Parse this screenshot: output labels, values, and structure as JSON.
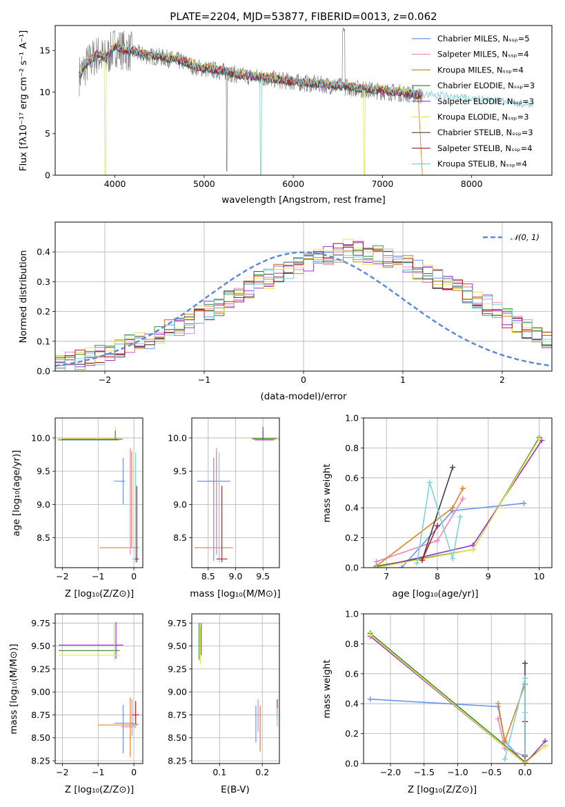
{
  "colors": {
    "series": [
      "#6495ed",
      "#ee82c0",
      "#e08020",
      "#3c8c3c",
      "#9932cc",
      "#e8e84a",
      "#404040",
      "#b22222",
      "#80d0d8"
    ],
    "normal": "#5b8bd8",
    "observed": "#808080"
  },
  "chart_data": [
    {
      "id": "spectrum",
      "type": "line",
      "title": "PLATE=2204, MJD=53877, FIBERID=0013, z=0.062",
      "xlabel": "wavelength [Angstrom, rest frame]",
      "ylabel": "Flux [fλ10⁻¹⁷ erg cm⁻² s⁻¹ A⁻¹]",
      "xlim": [
        3330,
        8900
      ],
      "ylim": [
        0,
        18
      ],
      "xticks": [
        "4000",
        "5000",
        "6000",
        "7000",
        "8000"
      ],
      "yticks": [
        "0",
        "5",
        "10",
        "15"
      ],
      "legend_position": "top-right",
      "series": [
        {
          "name": "Chabrier MILES, Nₛₛₚ=5"
        },
        {
          "name": "Salpeter MILES, Nₛₛₚ=4"
        },
        {
          "name": "Kroupa MILES, Nₛₛₚ=4"
        },
        {
          "name": "Chabrier ELODIE, Nₛₛₚ=3"
        },
        {
          "name": "Salpeter ELODIE, Nₛₛₚ=3"
        },
        {
          "name": "Kroupa ELODIE, Nₛₛₚ=3"
        },
        {
          "name": "Chabrier STELIB, Nₛₛₚ=3"
        },
        {
          "name": "Salpeter STELIB, Nₛₛₚ=4"
        },
        {
          "name": "Kroupa STELIB, Nₛₛₚ=4"
        }
      ],
      "continuum": {
        "x": [
          3600,
          3700,
          3800,
          3900,
          4000,
          4100,
          4200,
          4300,
          4400,
          4500,
          4600,
          4700,
          4800,
          4900,
          5000,
          5200,
          5400,
          5600,
          5800,
          6000,
          6200,
          6400,
          6600,
          6800,
          7000,
          7200,
          7400,
          7600,
          7800,
          8000,
          8200,
          8400,
          8600,
          8700
        ],
        "y": [
          12.0,
          13.5,
          14.5,
          14.0,
          15.5,
          15.0,
          14.8,
          14.5,
          14.3,
          14.2,
          14.0,
          13.8,
          13.5,
          13.0,
          12.8,
          12.5,
          12.0,
          11.8,
          11.5,
          11.2,
          11.0,
          10.8,
          10.6,
          10.3,
          10.1,
          9.9,
          9.6,
          9.4,
          9.2,
          9.0,
          8.8,
          8.6,
          8.4,
          8.3
        ]
      }
    },
    {
      "id": "residuals",
      "type": "line",
      "xlabel": "(data-model)/error",
      "ylabel": "Normed distribution",
      "xlim": [
        -2.5,
        2.5
      ],
      "ylim": [
        0,
        0.5
      ],
      "xticks": [
        "−2",
        "−1",
        "0",
        "1",
        "2"
      ],
      "yticks": [
        "0.0",
        "0.1",
        "0.2",
        "0.3",
        "0.4"
      ],
      "legend": "𝒩(0, 1)",
      "legend_position": "top-right",
      "bin_edges_start": -2.5,
      "bin_width": 0.1,
      "base_counts": [
        0.025,
        0.03,
        0.04,
        0.05,
        0.055,
        0.065,
        0.075,
        0.09,
        0.1,
        0.11,
        0.12,
        0.14,
        0.15,
        0.16,
        0.19,
        0.2,
        0.22,
        0.24,
        0.26,
        0.28,
        0.3,
        0.31,
        0.33,
        0.34,
        0.35,
        0.37,
        0.38,
        0.39,
        0.4,
        0.41,
        0.4,
        0.39,
        0.39,
        0.38,
        0.37,
        0.36,
        0.34,
        0.33,
        0.31,
        0.3,
        0.28,
        0.26,
        0.24,
        0.22,
        0.2,
        0.18,
        0.16,
        0.14,
        0.12,
        0.11
      ]
    },
    {
      "id": "age-vs-Z",
      "type": "scatter",
      "xlabel": "Z [log₁₀(Z/Z⊙)]",
      "ylabel": "age  [log₁₀(age/yr)]",
      "xlim": [
        -2.2,
        0.25
      ],
      "ylim": [
        8.05,
        10.3
      ],
      "xticks": [
        "−2",
        "−1",
        "0"
      ],
      "yticks": [
        "8.5",
        "9.0",
        "9.5",
        "10.0"
      ],
      "errorbars": [
        {
          "s": 4,
          "x": -0.52,
          "y": 9.98,
          "xerr": [
            1.5,
            0.2
          ],
          "yerr": [
            0.0,
            0.18
          ]
        },
        {
          "s": 5,
          "x": -0.52,
          "y": 9.99,
          "xerr": [
            1.6,
            0.15
          ],
          "yerr": [
            0.0,
            0.18
          ]
        },
        {
          "s": 3,
          "x": -0.52,
          "y": 9.97,
          "xerr": [
            1.6,
            0.1
          ],
          "yerr": [
            0.0,
            0.14
          ]
        },
        {
          "s": 0,
          "x": -0.3,
          "y": 9.35,
          "xerr": [
            0.25,
            0.05
          ],
          "yerr": [
            0.35,
            0.35
          ]
        },
        {
          "s": 2,
          "x": -0.06,
          "y": 8.35,
          "xerr": [
            0.9,
            0.2
          ],
          "yerr": [
            0.0,
            1.45
          ]
        },
        {
          "s": 1,
          "x": -0.1,
          "y": 8.35,
          "xerr": [
            0.1,
            0.1
          ],
          "yerr": [
            0.1,
            1.5
          ]
        },
        {
          "s": 8,
          "x": 0.05,
          "y": 8.18,
          "xerr": [
            0.1,
            0.1
          ],
          "yerr": [
            0.05,
            1.6
          ]
        },
        {
          "s": 7,
          "x": 0.08,
          "y": 8.18,
          "xerr": [
            0.05,
            0.05
          ],
          "yerr": [
            0.05,
            1.1
          ]
        }
      ]
    },
    {
      "id": "age-vs-mass",
      "type": "scatter",
      "xlabel": "mass [log₁₀(M/M⊙)]",
      "ylabel": "",
      "xlim": [
        8.2,
        9.8
      ],
      "ylim": [
        8.05,
        10.3
      ],
      "xticks": [
        "8.5",
        "9.0",
        "9.5"
      ],
      "yticks": [
        "8.5",
        "9.0",
        "9.5",
        "10.0"
      ],
      "errorbars": [
        {
          "s": 5,
          "x": 9.5,
          "y": 9.98,
          "xerr": [
            0.2,
            0.3
          ],
          "yerr": [
            0.0,
            0.2
          ]
        },
        {
          "s": 3,
          "x": 9.5,
          "y": 9.99,
          "xerr": [
            0.2,
            0.25
          ],
          "yerr": [
            0.0,
            0.18
          ]
        },
        {
          "s": 4,
          "x": 9.5,
          "y": 9.97,
          "xerr": [
            0.15,
            0.2
          ],
          "yerr": [
            0.0,
            0.15
          ]
        },
        {
          "s": 0,
          "x": 8.6,
          "y": 9.35,
          "xerr": [
            0.3,
            0.3
          ],
          "yerr": [
            1.2,
            0.35
          ]
        },
        {
          "s": 2,
          "x": 8.65,
          "y": 8.35,
          "xerr": [
            0.4,
            0.3
          ],
          "yerr": [
            0.1,
            1.45
          ]
        },
        {
          "s": 1,
          "x": 8.65,
          "y": 8.35,
          "xerr": [
            0.05,
            0.05
          ],
          "yerr": [
            0.1,
            1.5
          ]
        },
        {
          "s": 8,
          "x": 8.7,
          "y": 8.18,
          "xerr": [
            0.05,
            0.05
          ],
          "yerr": [
            0.05,
            1.6
          ]
        },
        {
          "s": 7,
          "x": 8.75,
          "y": 8.18,
          "xerr": [
            0.1,
            0.1
          ],
          "yerr": [
            0.05,
            1.1
          ]
        }
      ]
    },
    {
      "id": "mass-weight-vs-age",
      "type": "line",
      "xlabel": "age  [log₁₀(age/yr)]",
      "ylabel": "mass weight",
      "xlim": [
        6.55,
        10.25
      ],
      "ylim": [
        0,
        1
      ],
      "xticks": [
        "7",
        "8",
        "9",
        "10"
      ],
      "yticks": [
        "0.0",
        "0.2",
        "0.4",
        "0.6",
        "0.8",
        "1.0"
      ],
      "series": [
        {
          "s": 0,
          "x": [
            7.3,
            8.3,
            9.7
          ],
          "y": [
            0.0,
            0.38,
            0.43
          ]
        },
        {
          "s": 1,
          "x": [
            6.8,
            8.0,
            8.5
          ],
          "y": [
            0.04,
            0.18,
            0.46
          ]
        },
        {
          "s": 2,
          "x": [
            6.8,
            8.3,
            8.5
          ],
          "y": [
            0.01,
            0.4,
            0.53
          ]
        },
        {
          "s": 3,
          "x": [
            6.8,
            8.7,
            10.0
          ],
          "y": [
            0.01,
            0.12,
            0.87
          ]
        },
        {
          "s": 4,
          "x": [
            6.8,
            8.7,
            10.05
          ],
          "y": [
            0.0,
            0.15,
            0.85
          ]
        },
        {
          "s": 5,
          "x": [
            6.8,
            8.7,
            10.0
          ],
          "y": [
            0.0,
            0.12,
            0.86
          ]
        },
        {
          "s": 6,
          "x": [
            7.7,
            8.3
          ],
          "y": [
            0.05,
            0.67
          ]
        },
        {
          "s": 7,
          "x": [
            7.7,
            8.0
          ],
          "y": [
            0.05,
            0.28
          ]
        },
        {
          "s": 8,
          "x": [
            7.6,
            7.85,
            8.3,
            8.45
          ],
          "y": [
            0.03,
            0.57,
            0.06,
            0.34
          ]
        }
      ]
    },
    {
      "id": "mass-vs-Z",
      "type": "scatter",
      "xlabel": "Z [log₁₀(Z/Z⊙)]",
      "ylabel": "mass [log₁₀(M/M⊙)]",
      "xlim": [
        -2.2,
        0.25
      ],
      "ylim": [
        8.22,
        9.85
      ],
      "xticks": [
        "−2",
        "−1",
        "0"
      ],
      "yticks": [
        "8.25",
        "8.50",
        "8.75",
        "9.00",
        "9.25",
        "9.50",
        "9.75"
      ],
      "errorbars": [
        {
          "s": 4,
          "x": -0.5,
          "y": 9.51,
          "xerr": [
            1.6,
            0.2
          ],
          "yerr": [
            0.15,
            0.25
          ]
        },
        {
          "s": 3,
          "x": -0.55,
          "y": 9.45,
          "xerr": [
            1.55,
            0.15
          ],
          "yerr": [
            0.1,
            0.3
          ]
        },
        {
          "s": 5,
          "x": -0.55,
          "y": 9.4,
          "xerr": [
            1.55,
            0.15
          ],
          "yerr": [
            0.05,
            0.35
          ]
        },
        {
          "s": 0,
          "x": -0.3,
          "y": 8.66,
          "xerr": [
            0.25,
            0.3
          ],
          "yerr": [
            0.33,
            0.2
          ]
        },
        {
          "s": 2,
          "x": -0.1,
          "y": 8.64,
          "xerr": [
            0.9,
            0.2
          ],
          "yerr": [
            0.35,
            0.3
          ]
        },
        {
          "s": 1,
          "x": -0.05,
          "y": 8.62,
          "xerr": [
            0.3,
            0.1
          ],
          "yerr": [
            0.1,
            0.3
          ]
        },
        {
          "s": 8,
          "x": 0.05,
          "y": 8.65,
          "xerr": [
            0.1,
            0.1
          ],
          "yerr": [
            0.05,
            0.1
          ]
        },
        {
          "s": 7,
          "x": 0.05,
          "y": 8.75,
          "xerr": [
            0.1,
            0.1
          ],
          "yerr": [
            0.1,
            0.15
          ]
        }
      ]
    },
    {
      "id": "mass-vs-ebv",
      "type": "scatter",
      "xlabel": "E(B-V)",
      "ylabel": "",
      "xlim": [
        0.035,
        0.24
      ],
      "ylim": [
        8.22,
        9.85
      ],
      "xticks": [
        "0.1",
        "0.2"
      ],
      "yticks": [
        "8.25",
        "8.50",
        "8.75",
        "9.00",
        "9.25",
        "9.50",
        "9.75"
      ],
      "errorbars": [
        {
          "s": 3,
          "x": 0.052,
          "y": 9.55,
          "xerr": [
            0.0,
            0.0
          ],
          "yerr": [
            0.2,
            0.2
          ]
        },
        {
          "s": 5,
          "x": 0.055,
          "y": 9.5,
          "xerr": [
            0.0,
            0.0
          ],
          "yerr": [
            0.2,
            0.22
          ]
        },
        {
          "s": 4,
          "x": 0.057,
          "y": 9.55,
          "xerr": [
            0.0,
            0.0
          ],
          "yerr": [
            0.15,
            0.2
          ]
        },
        {
          "s": 0,
          "x": 0.185,
          "y": 8.65,
          "xerr": [
            0.0,
            0.0
          ],
          "yerr": [
            0.2,
            0.2
          ]
        },
        {
          "s": 1,
          "x": 0.19,
          "y": 8.72,
          "xerr": [
            0.0,
            0.0
          ],
          "yerr": [
            0.15,
            0.2
          ]
        },
        {
          "s": 2,
          "x": 0.195,
          "y": 8.6,
          "xerr": [
            0.0,
            0.0
          ],
          "yerr": [
            0.25,
            0.25
          ]
        },
        {
          "s": 7,
          "x": 0.235,
          "y": 8.82,
          "xerr": [
            0.0,
            0.0
          ],
          "yerr": [
            0.1,
            0.1
          ]
        },
        {
          "s": 8,
          "x": 0.235,
          "y": 8.72,
          "xerr": [
            0.0,
            0.0
          ],
          "yerr": [
            0.1,
            0.1
          ]
        }
      ]
    },
    {
      "id": "mass-weight-vs-Z",
      "type": "line",
      "xlabel": "Z [log₁₀(Z/Z⊙)]",
      "ylabel": "mass weight",
      "xlim": [
        -2.4,
        0.4
      ],
      "ylim": [
        0,
        1
      ],
      "xticks": [
        "−2.0",
        "−1.5",
        "−1.0",
        "−0.5",
        "0.0"
      ],
      "yticks": [
        "0.0",
        "0.2",
        "0.4",
        "0.6",
        "0.8",
        "1.0"
      ],
      "series": [
        {
          "s": 0,
          "x": [
            -2.3,
            -0.4,
            -0.3,
            0.0
          ],
          "y": [
            0.43,
            0.38,
            0.15,
            0.0
          ]
        },
        {
          "s": 1,
          "x": [
            -0.4,
            -0.3,
            0.0
          ],
          "y": [
            0.3,
            0.1,
            0.05
          ]
        },
        {
          "s": 2,
          "x": [
            -0.4,
            -0.3,
            0.0
          ],
          "y": [
            0.4,
            0.15,
            0.53
          ]
        },
        {
          "s": 3,
          "x": [
            -2.3,
            0.0,
            0.3
          ],
          "y": [
            0.87,
            0.01,
            0.12
          ]
        },
        {
          "s": 4,
          "x": [
            -2.3,
            0.0,
            0.3
          ],
          "y": [
            0.85,
            0.0,
            0.15
          ]
        },
        {
          "s": 5,
          "x": [
            -2.3,
            0.0,
            0.3
          ],
          "y": [
            0.86,
            0.0,
            0.12
          ]
        },
        {
          "s": 6,
          "x": [
            0.0,
            0.0
          ],
          "y": [
            0.05,
            0.67
          ]
        },
        {
          "s": 7,
          "x": [
            0.0,
            0.0
          ],
          "y": [
            0.05,
            0.28
          ]
        },
        {
          "s": 8,
          "x": [
            -0.3,
            0.0,
            0.0,
            0.0
          ],
          "y": [
            0.03,
            0.57,
            0.06,
            0.34
          ]
        }
      ]
    }
  ]
}
